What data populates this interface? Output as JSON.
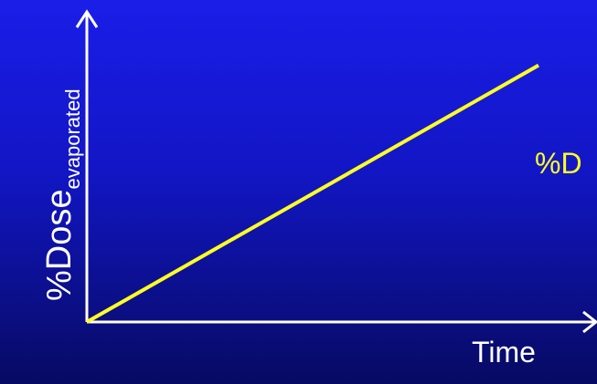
{
  "chart_data": {
    "type": "line",
    "title": "",
    "ylabel": "%Dose",
    "ylabel_subscript": "evaporated",
    "xlabel": "Time",
    "annotation": "%D",
    "grid": false,
    "xlim": [
      0,
      1
    ],
    "ylim": [
      0,
      1
    ],
    "series": [
      {
        "color": "#ffff22",
        "x": [
          0,
          0.89
        ],
        "y": [
          0,
          0.83
        ]
      }
    ]
  },
  "colors": {
    "background_top": "#1a1ee8",
    "background_bottom": "#070a62",
    "axis": "#ffffff",
    "series": "#ffff22"
  }
}
